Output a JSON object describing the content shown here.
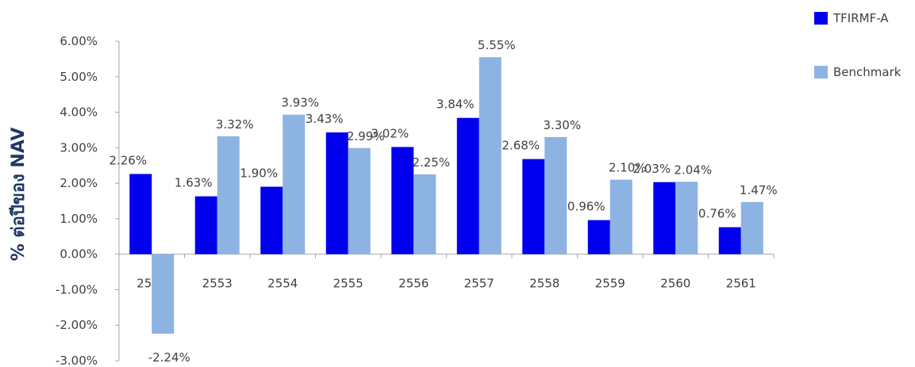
{
  "chart_data": {
    "type": "bar",
    "title": "",
    "xlabel": "",
    "ylabel": "% ต่อปีของ NAV",
    "categories": [
      "2552",
      "2553",
      "2554",
      "2555",
      "2556",
      "2557",
      "2558",
      "2559",
      "2560",
      "2561"
    ],
    "series": [
      {
        "name": "TFIRMF-A",
        "color": "#0000ee",
        "values": [
          2.26,
          1.63,
          1.9,
          3.43,
          3.02,
          3.84,
          2.68,
          0.96,
          2.03,
          0.76
        ],
        "labels": [
          "2.26%",
          "1.63%",
          "1.90%",
          "3.43%",
          "3.02%",
          "3.84%",
          "2.68%",
          "0.96%",
          "2.03%",
          "0.76%"
        ]
      },
      {
        "name": "Benchmark",
        "color": "#8db3e2",
        "values": [
          -2.24,
          3.32,
          3.93,
          2.99,
          2.25,
          5.55,
          3.3,
          2.1,
          2.04,
          1.47
        ],
        "labels": [
          "-2.24%",
          "3.32%",
          "3.93%",
          "2.99%",
          "2.25%",
          "5.55%",
          "3.30%",
          "2.10%",
          "2.04%",
          "1.47%"
        ]
      }
    ],
    "ylim": [
      -3,
      6
    ],
    "yticks": [
      "-3.00%",
      "-2.00%",
      "-1.00%",
      "0.00%",
      "1.00%",
      "2.00%",
      "3.00%",
      "4.00%",
      "5.00%",
      "6.00%"
    ],
    "grid": false,
    "legend_position": "top-right"
  }
}
